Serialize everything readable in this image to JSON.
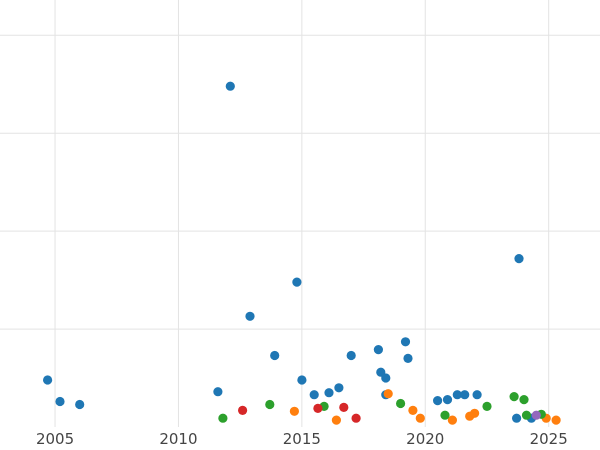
{
  "chart_data": {
    "type": "scatter",
    "title": "",
    "xlabel": "",
    "ylabel": "",
    "xlim": [
      2002.77,
      2027.08
    ],
    "ylim": [
      0,
      43.6
    ],
    "x_ticks": [
      2005,
      2010,
      2015,
      2020,
      2025
    ],
    "x_tick_labels": [
      "2005",
      "2010",
      "2015",
      "2020",
      "2025"
    ],
    "y_gridlines": [
      10,
      20,
      30,
      40
    ],
    "grid": true,
    "legend_position": "none",
    "styles": {
      "background": "#ffffff",
      "gridline_color": "#e3e3e3",
      "tick_label_color": "#444444",
      "point_radius": 4.6
    },
    "series": [
      {
        "name": "series-blue",
        "color": "#1f77b4",
        "points": [
          [
            2004.7,
            4.8
          ],
          [
            2005.2,
            2.6
          ],
          [
            2006.0,
            2.3
          ],
          [
            2011.6,
            3.6
          ],
          [
            2012.1,
            34.8
          ],
          [
            2012.9,
            11.3
          ],
          [
            2013.9,
            7.3
          ],
          [
            2014.8,
            14.8
          ],
          [
            2015.0,
            4.8
          ],
          [
            2015.5,
            3.3
          ],
          [
            2016.1,
            3.5
          ],
          [
            2016.5,
            4.0
          ],
          [
            2017.0,
            7.3
          ],
          [
            2018.1,
            7.9
          ],
          [
            2018.2,
            5.6
          ],
          [
            2018.4,
            5.0
          ],
          [
            2018.4,
            3.3
          ],
          [
            2019.2,
            8.7
          ],
          [
            2019.3,
            7.0
          ],
          [
            2020.5,
            2.7
          ],
          [
            2020.9,
            2.8
          ],
          [
            2021.3,
            3.3
          ],
          [
            2021.6,
            3.3
          ],
          [
            2022.1,
            3.3
          ],
          [
            2023.7,
            0.9
          ],
          [
            2023.8,
            17.2
          ],
          [
            2024.3,
            0.9
          ]
        ]
      },
      {
        "name": "series-orange",
        "color": "#ff7f0e",
        "points": [
          [
            2014.7,
            1.6
          ],
          [
            2016.4,
            0.7
          ],
          [
            2018.5,
            3.4
          ],
          [
            2019.5,
            1.7
          ],
          [
            2019.8,
            0.9
          ],
          [
            2021.1,
            0.7
          ],
          [
            2021.8,
            1.1
          ],
          [
            2022.0,
            1.4
          ],
          [
            2024.9,
            0.9
          ],
          [
            2025.3,
            0.7
          ]
        ]
      },
      {
        "name": "series-green",
        "color": "#2ca02c",
        "points": [
          [
            2011.8,
            0.9
          ],
          [
            2013.7,
            2.3
          ],
          [
            2015.9,
            2.1
          ],
          [
            2019.0,
            2.4
          ],
          [
            2020.8,
            1.2
          ],
          [
            2022.5,
            2.1
          ],
          [
            2023.6,
            3.1
          ],
          [
            2024.0,
            2.8
          ],
          [
            2024.1,
            1.2
          ],
          [
            2024.7,
            1.3
          ]
        ]
      },
      {
        "name": "series-red",
        "color": "#d62728",
        "points": [
          [
            2012.6,
            1.7
          ],
          [
            2015.65,
            1.9
          ],
          [
            2016.7,
            2.0
          ],
          [
            2017.2,
            0.9
          ]
        ]
      },
      {
        "name": "series-purple",
        "color": "#9467bd",
        "points": [
          [
            2024.5,
            1.2
          ]
        ]
      }
    ]
  }
}
